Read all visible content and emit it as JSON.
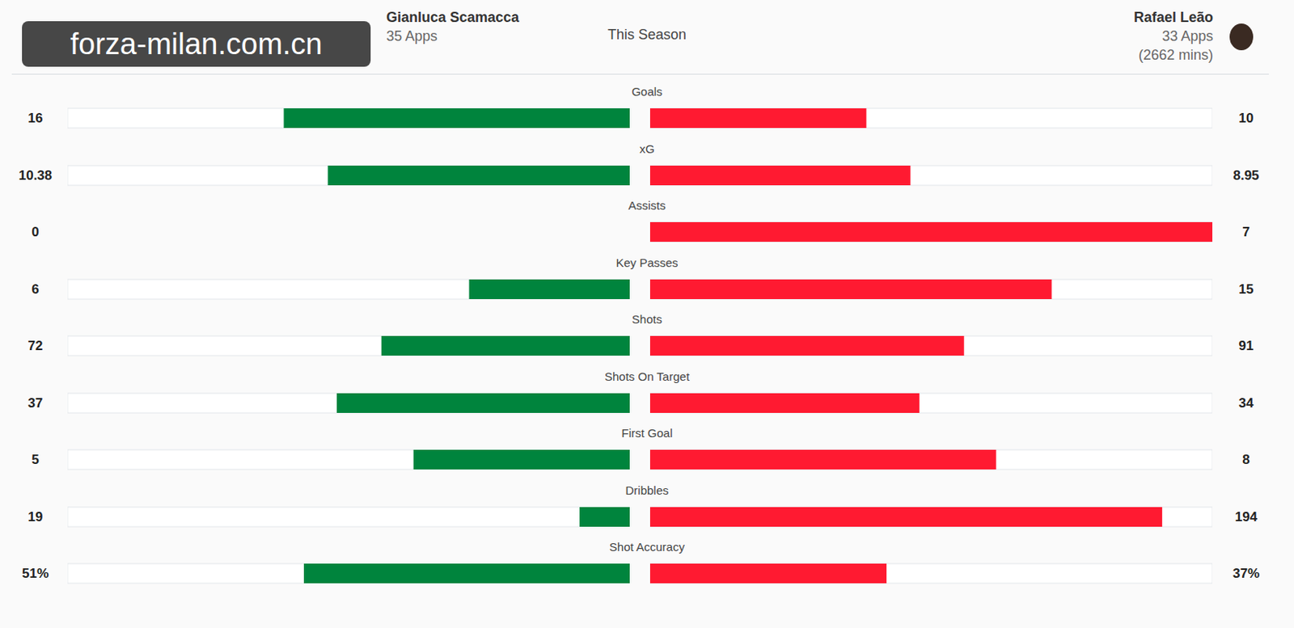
{
  "header": {
    "watermark": "forza-milan.com.cn",
    "center": "This Season",
    "left": {
      "name": "Gianluca Scamacca",
      "apps": "35 Apps"
    },
    "right": {
      "name": "Rafael Leão",
      "apps": "33 Apps",
      "mins": "(2662 mins)"
    }
  },
  "chart_data": [
    {
      "type": "bar",
      "orientation": "horizontal",
      "title": "Goals",
      "values": [
        16,
        10
      ],
      "colors": [
        "#00843d",
        "#ff1a31"
      ],
      "xlim": [
        0,
        26
      ],
      "data_labels": true,
      "tick_labels": false
    },
    {
      "type": "bar",
      "orientation": "horizontal",
      "title": "xG",
      "values": [
        10.38,
        8.95
      ],
      "colors": [
        "#00843d",
        "#ff1a31"
      ],
      "xlim": [
        0,
        19.33
      ],
      "data_labels": true,
      "tick_labels": false
    },
    {
      "type": "bar",
      "orientation": "horizontal",
      "title": "Assists",
      "values": [
        0,
        7
      ],
      "colors": [
        "#00843d",
        "#ff1a31"
      ],
      "xlim": [
        0,
        7
      ],
      "data_labels": true,
      "tick_labels": false
    },
    {
      "type": "bar",
      "orientation": "horizontal",
      "title": "Key Passes",
      "values": [
        6,
        15
      ],
      "colors": [
        "#00843d",
        "#ff1a31"
      ],
      "xlim": [
        0,
        21
      ],
      "data_labels": true,
      "tick_labels": false
    },
    {
      "type": "bar",
      "orientation": "horizontal",
      "title": "Shots",
      "values": [
        72,
        91
      ],
      "colors": [
        "#00843d",
        "#ff1a31"
      ],
      "xlim": [
        0,
        163
      ],
      "data_labels": true,
      "tick_labels": false
    },
    {
      "type": "bar",
      "orientation": "horizontal",
      "title": "Shots On Target",
      "values": [
        37,
        34
      ],
      "colors": [
        "#00843d",
        "#ff1a31"
      ],
      "xlim": [
        0,
        71
      ],
      "data_labels": true,
      "tick_labels": false
    },
    {
      "type": "bar",
      "orientation": "horizontal",
      "title": "First Goal",
      "values": [
        5,
        8
      ],
      "colors": [
        "#00843d",
        "#ff1a31"
      ],
      "xlim": [
        0,
        13
      ],
      "data_labels": true,
      "tick_labels": false
    },
    {
      "type": "bar",
      "orientation": "horizontal",
      "title": "Dribbles",
      "values": [
        19,
        194
      ],
      "colors": [
        "#00843d",
        "#ff1a31"
      ],
      "xlim": [
        0,
        213
      ],
      "data_labels": true,
      "tick_labels": false
    },
    {
      "type": "bar",
      "orientation": "horizontal",
      "title": "Shot Accuracy",
      "values": [
        51,
        37
      ],
      "value_labels": [
        "51%",
        "37%"
      ],
      "colors": [
        "#00843d",
        "#ff1a31"
      ],
      "xlim": [
        0,
        88
      ],
      "data_labels": true,
      "tick_labels": false
    }
  ]
}
